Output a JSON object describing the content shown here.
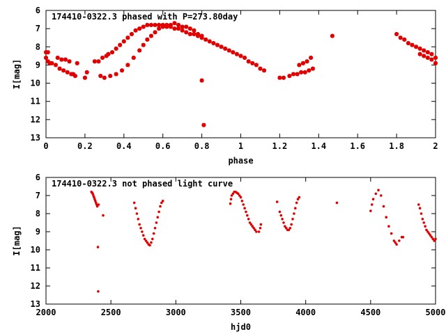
{
  "colors": {
    "points": "#e00000",
    "axes": "#000000",
    "background": "#ffffff"
  },
  "chart_data": [
    {
      "type": "scatter",
      "title": "174410-0322.3 phased with P=273.80day",
      "xlabel": "phase",
      "ylabel": "I[mag]",
      "xlim": [
        0,
        2
      ],
      "ylim": [
        13,
        6
      ],
      "y_inverted": true,
      "xticks": [
        "0",
        "0.2",
        "0.4",
        "0.6",
        "0.8",
        "1",
        "1.2",
        "1.4",
        "1.6",
        "1.8",
        "2"
      ],
      "yticks": [
        "6",
        "7",
        "8",
        "9",
        "10",
        "11",
        "12",
        "13"
      ],
      "grid": false,
      "marker": "star",
      "series": [
        {
          "x": [
            0.0,
            0.01,
            0.02,
            0.03,
            0.0,
            0.01,
            0.02,
            0.05,
            0.07,
            0.09,
            0.11,
            0.13,
            0.14,
            0.15,
            0.06,
            0.08,
            0.1,
            0.12,
            0.16,
            0.2,
            0.21,
            0.25,
            0.27,
            0.29,
            0.31,
            0.32,
            0.34,
            0.36,
            0.38,
            0.4,
            0.42,
            0.44,
            0.46,
            0.48,
            0.5,
            0.52,
            0.54,
            0.56,
            0.58,
            0.6,
            0.62,
            0.64,
            0.66,
            0.68,
            0.7,
            0.72,
            0.74,
            0.76,
            0.78,
            0.8,
            0.28,
            0.3,
            0.33,
            0.36,
            0.39,
            0.42,
            0.45,
            0.48,
            0.5,
            0.52,
            0.54,
            0.56,
            0.58,
            0.6,
            0.62,
            0.64,
            0.66,
            0.68,
            0.7,
            0.72,
            0.74,
            0.76,
            0.78,
            0.8,
            0.82,
            0.84,
            0.86,
            0.88,
            0.9,
            0.92,
            0.94,
            0.96,
            0.98,
            1.0,
            1.02,
            1.04,
            1.06,
            1.08,
            1.1,
            1.12,
            0.8,
            0.81,
            1.2,
            1.22,
            1.25,
            1.27,
            1.29,
            1.31,
            1.33,
            1.35,
            1.37,
            1.3,
            1.32,
            1.34,
            1.36,
            1.47,
            1.8,
            1.82,
            1.84,
            1.86,
            1.88,
            1.9,
            1.92,
            1.94,
            1.96,
            1.98,
            2.0,
            1.92,
            1.94,
            1.96,
            1.98,
            2.0
          ],
          "y": [
            8.6,
            8.8,
            8.9,
            8.9,
            8.3,
            8.3,
            8.9,
            9.0,
            9.2,
            9.3,
            9.4,
            9.5,
            9.5,
            9.6,
            8.6,
            8.7,
            8.7,
            8.8,
            8.9,
            9.7,
            9.4,
            8.8,
            8.8,
            8.6,
            8.5,
            8.4,
            8.3,
            8.1,
            7.9,
            7.7,
            7.5,
            7.3,
            7.1,
            7.0,
            6.9,
            6.8,
            6.8,
            6.8,
            6.8,
            6.8,
            6.9,
            6.9,
            7.0,
            7.0,
            7.1,
            7.2,
            7.3,
            7.3,
            7.4,
            7.4,
            9.6,
            9.7,
            9.6,
            9.5,
            9.3,
            9.0,
            8.6,
            8.2,
            7.9,
            7.6,
            7.4,
            7.2,
            7.0,
            6.9,
            6.8,
            6.8,
            6.7,
            6.8,
            6.9,
            6.9,
            7.0,
            7.1,
            7.3,
            7.5,
            7.6,
            7.7,
            7.8,
            7.9,
            8.0,
            8.1,
            8.2,
            8.3,
            8.4,
            8.5,
            8.6,
            8.8,
            8.9,
            9.0,
            9.2,
            9.3,
            9.85,
            12.3,
            9.7,
            9.7,
            9.6,
            9.5,
            9.5,
            9.4,
            9.4,
            9.3,
            9.2,
            9.0,
            8.9,
            8.8,
            8.6,
            7.4,
            7.3,
            7.5,
            7.6,
            7.8,
            7.9,
            8.0,
            8.1,
            8.2,
            8.3,
            8.4,
            8.6,
            8.4,
            8.5,
            8.6,
            8.7,
            8.9
          ]
        }
      ]
    },
    {
      "type": "scatter",
      "title": "174410-0322.3 not phased light curve",
      "xlabel": "hjd0",
      "ylabel": "I[mag]",
      "xlim": [
        2000,
        5000
      ],
      "ylim": [
        13,
        6
      ],
      "y_inverted": true,
      "xticks": [
        "2000",
        "2500",
        "3000",
        "3500",
        "4000",
        "4500",
        "5000"
      ],
      "yticks": [
        "6",
        "7",
        "8",
        "9",
        "10",
        "11",
        "12",
        "13"
      ],
      "grid": false,
      "marker": "dot",
      "series": [
        {
          "x": [
            2350,
            2355,
            2360,
            2365,
            2370,
            2375,
            2380,
            2385,
            2390,
            2395,
            2400,
            2402,
            2405,
            2440,
            2680,
            2690,
            2700,
            2710,
            2720,
            2730,
            2740,
            2750,
            2760,
            2770,
            2780,
            2790,
            2800,
            2810,
            2820,
            2830,
            2840,
            2850,
            2860,
            2870,
            2880,
            2890,
            2900,
            3420,
            3425,
            3430,
            3440,
            3450,
            3460,
            3470,
            3480,
            3490,
            3500,
            3510,
            3520,
            3530,
            3540,
            3550,
            3560,
            3570,
            3580,
            3590,
            3600,
            3610,
            3620,
            3640,
            3650,
            3655,
            3780,
            3800,
            3810,
            3820,
            3830,
            3840,
            3850,
            3860,
            3870,
            3880,
            3890,
            3900,
            3910,
            3920,
            3930,
            3940,
            3950,
            4240,
            4500,
            4510,
            4520,
            4540,
            4560,
            4580,
            4600,
            4620,
            4640,
            4660,
            4680,
            4690,
            4700,
            4720,
            4740,
            4750,
            4870,
            4880,
            4890,
            4900,
            4910,
            4920,
            4930,
            4940,
            4950,
            4960,
            4970,
            4980,
            4990,
            5000
          ],
          "y": [
            6.8,
            6.85,
            6.9,
            7.0,
            7.1,
            7.2,
            7.3,
            7.4,
            7.5,
            7.6,
            9.85,
            12.3,
            7.5,
            8.1,
            7.4,
            7.7,
            8.0,
            8.3,
            8.6,
            8.8,
            9.0,
            9.2,
            9.4,
            9.5,
            9.6,
            9.7,
            9.75,
            9.6,
            9.4,
            9.1,
            8.8,
            8.5,
            8.2,
            7.9,
            7.6,
            7.4,
            7.3,
            7.45,
            7.2,
            7.0,
            6.9,
            6.8,
            6.8,
            6.85,
            6.9,
            7.0,
            7.1,
            7.3,
            7.5,
            7.7,
            7.9,
            8.1,
            8.3,
            8.5,
            8.6,
            8.7,
            8.8,
            8.9,
            9.0,
            9.0,
            8.8,
            8.6,
            7.35,
            7.9,
            8.1,
            8.3,
            8.5,
            8.7,
            8.8,
            8.9,
            8.9,
            8.8,
            8.6,
            8.3,
            8.0,
            7.7,
            7.4,
            7.2,
            7.1,
            7.4,
            7.85,
            7.5,
            7.2,
            6.9,
            6.7,
            7.0,
            7.6,
            8.2,
            8.7,
            9.1,
            9.5,
            9.6,
            9.7,
            9.5,
            9.3,
            9.3,
            7.5,
            7.7,
            8.0,
            8.3,
            8.5,
            8.7,
            8.9,
            9.0,
            9.1,
            9.2,
            9.3,
            9.4,
            9.5,
            9.4
          ]
        }
      ]
    }
  ]
}
